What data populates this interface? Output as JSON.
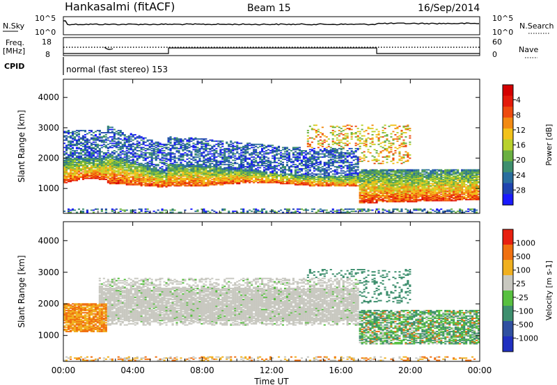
{
  "header": {
    "station": "Hankasalmi (fitACF)",
    "beam": "Beam 15",
    "date": "16/Sep/2014"
  },
  "aux_panel": {
    "nsky_label": "N.Sky",
    "nsky_ticks": [
      "10^5",
      "10^0"
    ],
    "nsearch_label": "N.Search",
    "nsearch_ticks": [
      "10^5",
      "10^0"
    ],
    "freq_label_1": "Freq.",
    "freq_label_2": "[MHz]",
    "freq_ticks": [
      "18",
      "8"
    ],
    "nave_label": "Nave",
    "nave_ticks": [
      "60",
      "0"
    ],
    "cpid_label": "CPID",
    "cpid_text": "normal (fast stereo) 153"
  },
  "chart_data": [
    {
      "type": "heatmap",
      "name": "power",
      "xlabel": "Time UT",
      "ylabel": "Slant Range [km]",
      "xlim": [
        0,
        24
      ],
      "ylim": [
        180,
        4600
      ],
      "x_ticks": [
        "00:00",
        "04:00",
        "08:00",
        "12:00",
        "16:00",
        "20:00",
        "00:00"
      ],
      "y_ticks": [
        1000,
        2000,
        3000,
        4000
      ],
      "colorbar": {
        "label": "Power [dB]",
        "ticks": [
          "4",
          "8",
          "12",
          "16",
          "20",
          "24",
          "28"
        ],
        "colors": [
          "#1a1aff",
          "#1f44b0",
          "#2a6e9e",
          "#3e8f6e",
          "#6ab042",
          "#b9d12c",
          "#f2c21a",
          "#f28a12",
          "#ee4a0e",
          "#e41a0a",
          "#d40000"
        ]
      },
      "bands": [
        {
          "region": "main echo band",
          "t_start": 0,
          "t_end": 24,
          "range_low_km": 900,
          "range_high_km": 2000,
          "power_dB": 20
        },
        {
          "region": "upper scatter",
          "t_start": 0,
          "t_end": 16,
          "range_low_km": 2000,
          "range_high_km": 2900,
          "power_dB": 8
        },
        {
          "region": "late near-range",
          "t_start": 18,
          "t_end": 24,
          "range_low_km": 400,
          "range_high_km": 1300,
          "power_dB": 28
        }
      ]
    },
    {
      "type": "heatmap",
      "name": "velocity",
      "xlabel": "Time UT",
      "ylabel": "Slant Range [km]",
      "xlim": [
        0,
        24
      ],
      "ylim": [
        180,
        4600
      ],
      "x_ticks": [
        "00:00",
        "04:00",
        "08:00",
        "12:00",
        "16:00",
        "20:00",
        "00:00"
      ],
      "y_ticks": [
        1000,
        2000,
        3000,
        4000
      ],
      "colorbar": {
        "label": "Velocity [m s-1]",
        "ticks": [
          "1000",
          "500",
          "100",
          "25",
          "-25",
          "-100",
          "-500",
          "-1000"
        ],
        "colors": [
          "#2030c0",
          "#3050a0",
          "#3e8f6e",
          "#58c040",
          "#c8c8c0",
          "#f0b020",
          "#f07010",
          "#e82010"
        ]
      },
      "bands": [
        {
          "region": "early echoes",
          "t_start": 0,
          "t_end": 2.5,
          "range_low_km": 1100,
          "range_high_km": 2000,
          "velocity": -300
        },
        {
          "region": "ground scatter",
          "t_start": 2,
          "t_end": 17,
          "range_low_km": 1300,
          "range_high_km": 2800,
          "velocity": 0
        },
        {
          "region": "late echoes",
          "t_start": 17,
          "t_end": 24,
          "range_low_km": 700,
          "range_high_km": 1800,
          "velocity": 150
        }
      ]
    }
  ]
}
